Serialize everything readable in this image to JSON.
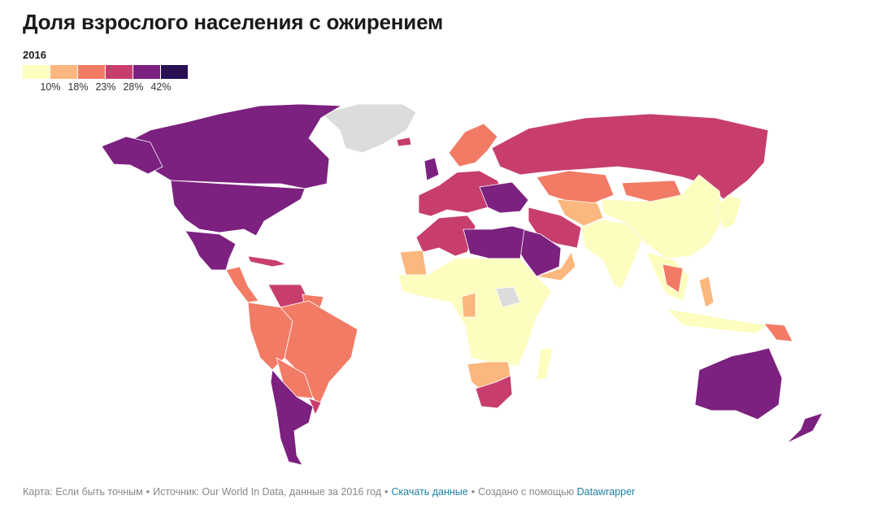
{
  "title": "Доля взрослого населения с ожирением",
  "legend": {
    "year": "2016",
    "colors": [
      "#fcfdbf",
      "#fbb77e",
      "#f27b65",
      "#c73e6e",
      "#7c217f",
      "#2b0f55"
    ],
    "labels": [
      "10%",
      "18%",
      "23%",
      "28%",
      "42%"
    ]
  },
  "palette": {
    "no_data": "#dcdcdc",
    "c10": "#fcfdbf",
    "c18": "#fbb77e",
    "c23": "#f27b65",
    "c28": "#c73e6e",
    "c42": "#7c217f"
  },
  "footer": {
    "prefix": "Карта: Если быть точным",
    "source": "Источник: Our World In Data, данные за 2016 год",
    "download": "Скачать данные",
    "created": "Создано с помощью",
    "tool": "Datawrapper",
    "bullet": "•"
  }
}
